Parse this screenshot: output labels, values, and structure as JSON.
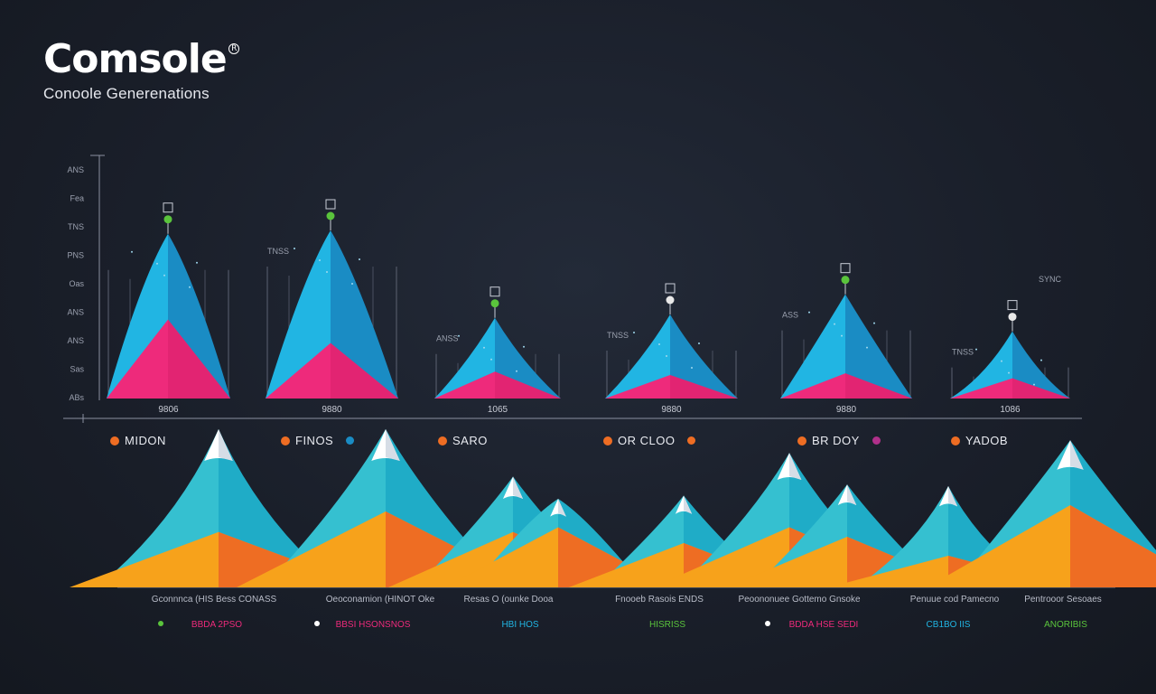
{
  "brand": {
    "title": "Comsole",
    "subtitle": "Conoole Generenations"
  },
  "colors": {
    "background": "#1b202b",
    "cyan": "#21b5e3",
    "blue": "#1a8cc4",
    "pink": "#ee2a7b",
    "orange": "#f7a21b",
    "orange_dark": "#ee6d23",
    "teal": "#35c0d0",
    "snow": "#ffffff",
    "green": "#5ac43c",
    "axis": "#8a90a0",
    "text": "#e8eaf0",
    "muted": "#9aa0ae"
  },
  "chart_data": [
    {
      "type": "area",
      "title": "",
      "y_ticks": [
        "ANS",
        "Fea",
        "TNS",
        "PNS",
        "Oas",
        "ANS",
        "ANS",
        "Sas",
        "ABs"
      ],
      "ylim": [
        0,
        100
      ],
      "groups": [
        {
          "label": "9806",
          "cyan_peak": 98,
          "pink_peak": 47,
          "marker": "green",
          "annotation": "",
          "top_label": ""
        },
        {
          "label": "9880",
          "cyan_peak": 100,
          "pink_peak": 33,
          "marker": "green",
          "annotation": "TNSS",
          "top_label": ""
        },
        {
          "label": "1065",
          "cyan_peak": 48,
          "pink_peak": 16,
          "marker": "green",
          "annotation": "ANSS",
          "top_label": ""
        },
        {
          "label": "9880",
          "cyan_peak": 50,
          "pink_peak": 14,
          "marker": "white",
          "annotation": "TNSS",
          "top_label": ""
        },
        {
          "label": "9880",
          "cyan_peak": 62,
          "pink_peak": 15,
          "marker": "green",
          "annotation": "ASS",
          "top_label": ""
        },
        {
          "label": "1086",
          "cyan_peak": 40,
          "pink_peak": 12,
          "marker": "white",
          "annotation": "TNSS",
          "top_label": "SYNC"
        }
      ]
    },
    {
      "type": "area",
      "title": "",
      "ylim": [
        0,
        100
      ],
      "legend": [
        {
          "label": "MIDON",
          "color": "#ee6d23",
          "extra": ""
        },
        {
          "label": "FINOS",
          "color": "#ee6d23",
          "extra": "#1a8cc4"
        },
        {
          "label": "SARO",
          "color": "#ee6d23",
          "extra": ""
        },
        {
          "label": "OR CLOO",
          "color": "#ee6d23",
          "extra": "#ee6d23"
        },
        {
          "label": "BR DOY",
          "color": "#ee6d23",
          "extra": "#b0308a"
        },
        {
          "label": "YADOB",
          "color": "#ee6d23",
          "extra": ""
        }
      ],
      "peaks": [
        {
          "x": 242,
          "cyan": 100,
          "orange": 35
        },
        {
          "x": 427,
          "cyan": 100,
          "orange": 48
        },
        {
          "x": 568,
          "cyan": 70,
          "orange": 35
        },
        {
          "x": 618,
          "cyan": 56,
          "orange": 38
        },
        {
          "x": 757,
          "cyan": 58,
          "orange": 28
        },
        {
          "x": 874,
          "cyan": 85,
          "orange": 38
        },
        {
          "x": 938,
          "cyan": 65,
          "orange": 32
        },
        {
          "x": 1050,
          "cyan": 64,
          "orange": 20
        },
        {
          "x": 1185,
          "cyan": 93,
          "orange": 52
        }
      ],
      "category_labels": [
        "Gconnnca (HIS Bess CONASS",
        "Oeoconamion (HINOT Oke",
        "Resas O (ounke Dooa",
        "Fnooeb Rasois ENDS",
        "Peoononuee Gottemo Gnsoke",
        "Penuue cod Pamecno",
        "Pentrooor Sesoaes"
      ],
      "sub_labels": [
        {
          "text": "BBDA 2PSO",
          "color": "#ee2a7b",
          "dot": "#5ac43c"
        },
        {
          "text": "BBSI HSONSNOS",
          "color": "#ee2a7b",
          "dot": "#ffffff"
        },
        {
          "text": "HBI HOS",
          "color": "#21b5e3",
          "dot": ""
        },
        {
          "text": "HISRISS",
          "color": "#5ac43c",
          "dot": ""
        },
        {
          "text": "BDDA HSE SEDI",
          "color": "#ee2a7b",
          "dot": "#ffffff"
        },
        {
          "text": "CB1BO IIS",
          "color": "#21b5e3",
          "dot": ""
        },
        {
          "text": "ANORIBIS",
          "color": "#5ac43c",
          "dot": ""
        }
      ]
    }
  ]
}
